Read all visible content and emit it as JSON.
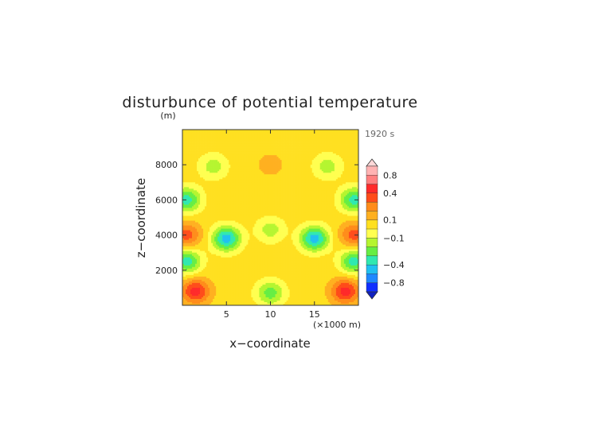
{
  "chart_data": {
    "type": "heatmap",
    "title": "disturbunce of potential temperature",
    "time_label": "1920 s",
    "xlabel": "x−coordinate",
    "ylabel": "z−coordinate",
    "y_unit": "(m)",
    "x_unit": "(×1000 m)",
    "xlim": [
      0,
      20
    ],
    "ylim": [
      0,
      10000
    ],
    "x_ticks": [
      5,
      10,
      15
    ],
    "x_tick_labels": [
      "5",
      "10",
      "15"
    ],
    "y_ticks": [
      2000,
      4000,
      6000,
      8000
    ],
    "y_tick_labels": [
      "2000",
      "4000",
      "6000",
      "8000"
    ],
    "grid": false,
    "colorbar": {
      "position": "right",
      "labels": [
        {
          "value": 0.8,
          "text": "0.8"
        },
        {
          "value": 0.4,
          "text": "0.4"
        },
        {
          "value": 0.1,
          "text": "0.1"
        },
        {
          "value": -0.1,
          "text": "−0.1"
        },
        {
          "value": -0.4,
          "text": "−0.4"
        },
        {
          "value": -0.8,
          "text": "−0.8"
        }
      ],
      "levels": [
        {
          "from": 0.8,
          "to": 1.0,
          "color": "#ffb3b3"
        },
        {
          "from": 0.6,
          "to": 0.8,
          "color": "#ff8080"
        },
        {
          "from": 0.4,
          "to": 0.6,
          "color": "#ff2a2a"
        },
        {
          "from": 0.3,
          "to": 0.4,
          "color": "#ff4c1a"
        },
        {
          "from": 0.2,
          "to": 0.3,
          "color": "#ff8c1a"
        },
        {
          "from": 0.1,
          "to": 0.2,
          "color": "#ffb020"
        },
        {
          "from": 0.0,
          "to": 0.1,
          "color": "#ffe020"
        },
        {
          "from": -0.1,
          "to": 0.0,
          "color": "#ffff50"
        },
        {
          "from": -0.2,
          "to": -0.1,
          "color": "#b5f530"
        },
        {
          "from": -0.3,
          "to": -0.2,
          "color": "#66ee44"
        },
        {
          "from": -0.4,
          "to": -0.3,
          "color": "#30e8b0"
        },
        {
          "from": -0.6,
          "to": -0.4,
          "color": "#20c0f0"
        },
        {
          "from": -0.8,
          "to": -0.6,
          "color": "#1e88ff"
        },
        {
          "from": -1.0,
          "to": -0.8,
          "color": "#1030ff"
        }
      ],
      "extend_max_color": "#ffd8d8",
      "extend_min_color": "#1020c0"
    },
    "field_features": [
      {
        "x": 1.5,
        "z": 800,
        "value": 0.45
      },
      {
        "x": 18.5,
        "z": 800,
        "value": 0.45
      },
      {
        "x": 10,
        "z": 700,
        "value": -0.25
      },
      {
        "x": 0.5,
        "z": 2500,
        "value": -0.35
      },
      {
        "x": 19.5,
        "z": 2500,
        "value": -0.35
      },
      {
        "x": 0.5,
        "z": 4000,
        "value": 0.35
      },
      {
        "x": 19.5,
        "z": 4000,
        "value": 0.35
      },
      {
        "x": 10,
        "z": 4300,
        "value": -0.15
      },
      {
        "x": 5,
        "z": 3800,
        "value": -0.45
      },
      {
        "x": 15,
        "z": 3800,
        "value": -0.45
      },
      {
        "x": 0.5,
        "z": 6000,
        "value": -0.35
      },
      {
        "x": 19.5,
        "z": 6000,
        "value": -0.35
      },
      {
        "x": 10,
        "z": 8000,
        "value": 0.15
      },
      {
        "x": 3.5,
        "z": 7900,
        "value": -0.15
      },
      {
        "x": 16.5,
        "z": 7900,
        "value": -0.15
      }
    ]
  }
}
